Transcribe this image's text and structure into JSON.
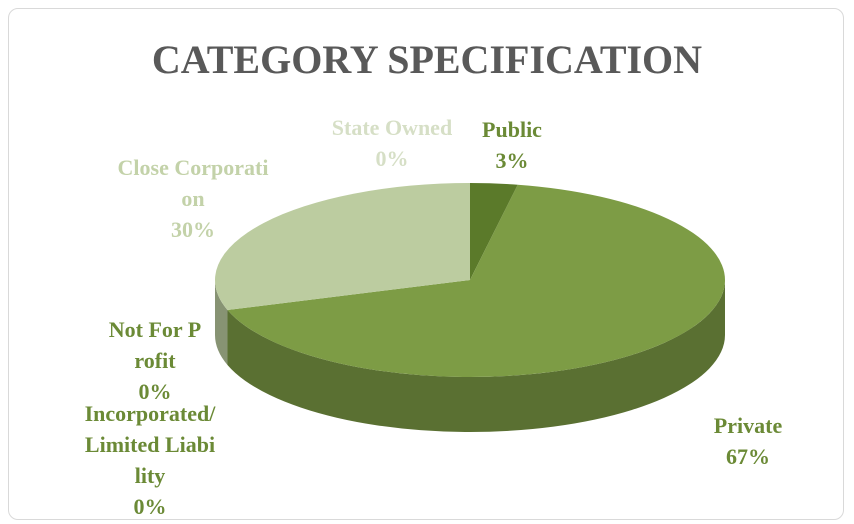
{
  "chart_data": {
    "type": "pie",
    "title": "CATEGORY SPECIFICATION",
    "categories": [
      "Public",
      "Private",
      "Incorporated/Limited Liability",
      "Not For Profit",
      "Close Corporation",
      "State Owned"
    ],
    "values": [
      3,
      67,
      0,
      0,
      30,
      0
    ],
    "value_labels": [
      "3%",
      "67%",
      "0%",
      "0%",
      "30%",
      "0%"
    ],
    "colors": [
      "#5b7a2a",
      "#7d9c45",
      "#6a8a35",
      "#6a8a35",
      "#bccca0",
      "#d5dfc4"
    ]
  }
}
